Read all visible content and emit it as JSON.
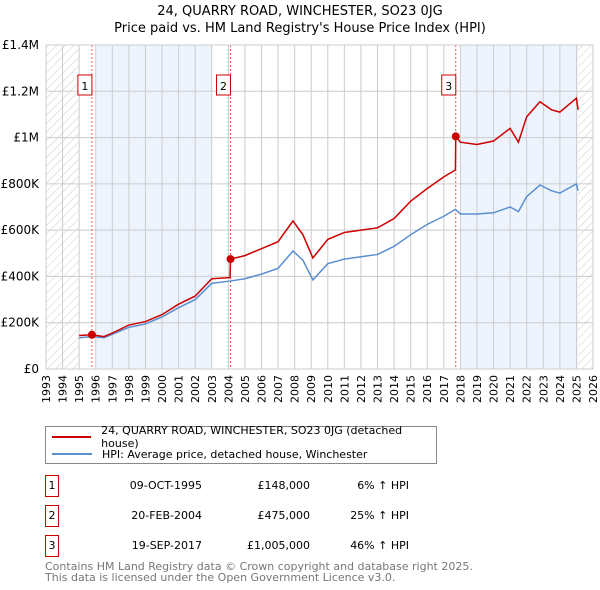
{
  "chart_data": {
    "type": "line",
    "title": "24, QUARRY ROAD, WINCHESTER, SO23 0JG",
    "subtitle": "Price paid vs. HM Land Registry's House Price Index (HPI)",
    "xlim": [
      1993,
      2026
    ],
    "ylim": [
      0,
      1400000
    ],
    "x_ticks": [
      "1993",
      "1994",
      "1995",
      "1996",
      "1997",
      "1998",
      "1999",
      "2000",
      "2001",
      "2002",
      "2003",
      "2004",
      "2005",
      "2006",
      "2007",
      "2008",
      "2009",
      "2010",
      "2011",
      "2012",
      "2013",
      "2014",
      "2015",
      "2016",
      "2017",
      "2018",
      "2019",
      "2020",
      "2021",
      "2022",
      "2023",
      "2024",
      "2025",
      "2026"
    ],
    "y_ticks": [
      {
        "v": 0,
        "label": "£0"
      },
      {
        "v": 200000,
        "label": "£200K"
      },
      {
        "v": 400000,
        "label": "£400K"
      },
      {
        "v": 600000,
        "label": "£600K"
      },
      {
        "v": 800000,
        "label": "£800K"
      },
      {
        "v": 1000000,
        "label": "£1M"
      },
      {
        "v": 1200000,
        "label": "£1.2M"
      },
      {
        "v": 1400000,
        "label": "£1.4M"
      }
    ],
    "grid": true,
    "series": [
      {
        "name": "24, QUARRY ROAD, WINCHESTER, SO23 0JG (detached house)",
        "color": "#cc0000",
        "x": [
          1995.0,
          1995.77,
          1996.5,
          1997,
          1998,
          1999,
          2000,
          2001,
          2002,
          2003,
          2004.1,
          2004.13,
          2005,
          2006,
          2007,
          2007.9,
          2008.5,
          2009.1,
          2010,
          2011,
          2012,
          2013,
          2014,
          2015,
          2016,
          2017,
          2017.7,
          2017.72,
          2018,
          2019,
          2020,
          2021,
          2021.5,
          2022,
          2022.8,
          2023.5,
          2024,
          2025,
          2025.1
        ],
        "y": [
          145000,
          148000,
          140000,
          155000,
          190000,
          205000,
          235000,
          280000,
          315000,
          390000,
          395000,
          475000,
          490000,
          520000,
          550000,
          640000,
          580000,
          480000,
          560000,
          590000,
          600000,
          610000,
          650000,
          725000,
          780000,
          830000,
          860000,
          1005000,
          980000,
          970000,
          985000,
          1040000,
          980000,
          1090000,
          1155000,
          1120000,
          1110000,
          1170000,
          1120000
        ]
      },
      {
        "name": "HPI: Average price, detached house, Winchester",
        "color": "#5b8fd0",
        "x": [
          1995.0,
          1995.77,
          1996.5,
          1997,
          1998,
          1999,
          2000,
          2001,
          2002,
          2003,
          2004.1,
          2005,
          2006,
          2007,
          2007.9,
          2008.5,
          2009.1,
          2010,
          2011,
          2012,
          2013,
          2014,
          2015,
          2016,
          2017,
          2017.7,
          2018,
          2019,
          2020,
          2021,
          2021.5,
          2022,
          2022.8,
          2023.5,
          2024,
          2025,
          2025.1
        ],
        "y": [
          135000,
          140000,
          135000,
          150000,
          180000,
          195000,
          225000,
          265000,
          300000,
          370000,
          380000,
          390000,
          410000,
          435000,
          510000,
          470000,
          385000,
          455000,
          475000,
          485000,
          495000,
          530000,
          580000,
          625000,
          660000,
          690000,
          670000,
          670000,
          675000,
          700000,
          680000,
          745000,
          795000,
          770000,
          760000,
          800000,
          770000
        ]
      }
    ],
    "sales": [
      {
        "n": "1",
        "x": 1995.77,
        "y": 148000
      },
      {
        "n": "2",
        "x": 2004.13,
        "y": 475000
      },
      {
        "n": "3",
        "x": 2017.72,
        "y": 1005000
      }
    ],
    "hatch_ranges": [
      [
        1993,
        1995
      ],
      [
        2025.1,
        2026
      ]
    ],
    "shade_ranges": [
      [
        1996,
        2003
      ],
      [
        2018,
        2025.1
      ]
    ]
  },
  "legend": {
    "red": "24, QUARRY ROAD, WINCHESTER, SO23 0JG (detached house)",
    "blue": "HPI: Average price, detached house, Winchester"
  },
  "transactions": [
    {
      "n": "1",
      "date": "09-OCT-1995",
      "price": "£148,000",
      "hpi": "6% ↑ HPI"
    },
    {
      "n": "2",
      "date": "20-FEB-2004",
      "price": "£475,000",
      "hpi": "25% ↑ HPI"
    },
    {
      "n": "3",
      "date": "19-SEP-2017",
      "price": "£1,005,000",
      "hpi": "46% ↑ HPI"
    }
  ],
  "footer": {
    "line1": "Contains HM Land Registry data © Crown copyright and database right 2025.",
    "line2": "This data is licensed under the Open Government Licence v3.0."
  }
}
